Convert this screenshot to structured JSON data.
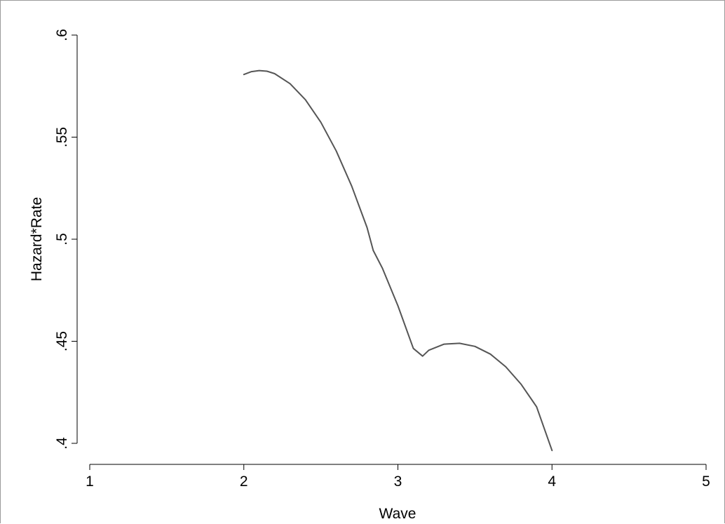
{
  "chart_data": {
    "type": "line",
    "title": "",
    "xlabel": "Wave",
    "ylabel": "Hazard*Rate",
    "xlim": [
      1,
      5
    ],
    "ylim": [
      0.4,
      0.6
    ],
    "x_ticks": [
      1,
      2,
      3,
      4,
      5
    ],
    "x_tick_labels": [
      "1",
      "2",
      "3",
      "4",
      "5"
    ],
    "y_ticks": [
      0.4,
      0.45,
      0.5,
      0.55,
      0.6
    ],
    "y_tick_labels": [
      ".4",
      ".45",
      ".5",
      ".55",
      ".6"
    ],
    "grid": false,
    "legend": "none",
    "colors": {
      "line": "#555555",
      "axis": "#000000",
      "frame": "#9a9a9a"
    },
    "series": [
      {
        "x": [
          2.0,
          2.05,
          2.1,
          2.15,
          2.2,
          2.3,
          2.4,
          2.5,
          2.6,
          2.7,
          2.8,
          2.84,
          2.9,
          3.0,
          3.1,
          3.16,
          3.2,
          3.3,
          3.4,
          3.5,
          3.6,
          3.7,
          3.8,
          3.9,
          4.0
        ],
        "y": [
          0.5807,
          0.5821,
          0.5826,
          0.5823,
          0.5811,
          0.5762,
          0.5683,
          0.5573,
          0.5432,
          0.526,
          0.5057,
          0.4945,
          0.4857,
          0.4674,
          0.4465,
          0.4427,
          0.4456,
          0.4486,
          0.449,
          0.4475,
          0.4437,
          0.4375,
          0.4289,
          0.4179,
          0.3965
        ]
      }
    ]
  }
}
